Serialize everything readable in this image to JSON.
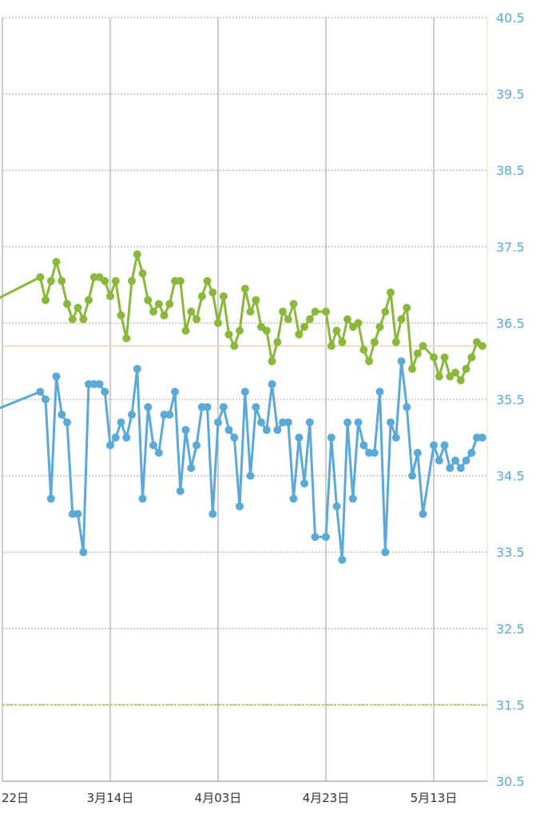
{
  "chart_data": {
    "type": "line",
    "title": "",
    "xlabel": "",
    "ylabel": "",
    "ylim": [
      30.5,
      40.5
    ],
    "y_ticks": [
      "40.5",
      "39.5",
      "38.5",
      "37.5",
      "36.5",
      "35.5",
      "34.5",
      "33.5",
      "32.5",
      "31.5",
      "30.5"
    ],
    "x_ticks": [
      {
        "label": "22日",
        "day": 0
      },
      {
        "label": "3月14日",
        "day": 20
      },
      {
        "label": "4月03日",
        "day": 40
      },
      {
        "label": "4月23日",
        "day": 60
      },
      {
        "label": "5月13日",
        "day": 80
      }
    ],
    "grid": true,
    "reference_lines": [
      {
        "value": 36.2,
        "color": "#f0dcc0"
      },
      {
        "value": 31.5,
        "color": "#a8c85a"
      }
    ],
    "series": [
      {
        "color": "#8ab83a",
        "points": [
          [
            -7,
            36.6
          ],
          [
            7,
            37.1
          ],
          [
            8,
            36.8
          ],
          [
            9,
            37.05
          ],
          [
            10,
            37.3
          ],
          [
            11,
            37.05
          ],
          [
            12,
            36.75
          ],
          [
            13,
            36.55
          ],
          [
            14,
            36.7
          ],
          [
            15,
            36.55
          ],
          [
            16,
            36.8
          ],
          [
            17,
            37.1
          ],
          [
            18,
            37.1
          ],
          [
            19,
            37.05
          ],
          [
            20,
            36.85
          ],
          [
            21,
            37.05
          ],
          [
            22,
            36.6
          ],
          [
            23,
            36.3
          ],
          [
            24,
            37.05
          ],
          [
            25,
            37.4
          ],
          [
            26,
            37.15
          ],
          [
            27,
            36.8
          ],
          [
            28,
            36.65
          ],
          [
            29,
            36.75
          ],
          [
            30,
            36.6
          ],
          [
            31,
            36.75
          ],
          [
            32,
            37.05
          ],
          [
            33,
            37.05
          ],
          [
            34,
            36.4
          ],
          [
            35,
            36.65
          ],
          [
            36,
            36.55
          ],
          [
            37,
            36.85
          ],
          [
            38,
            37.05
          ],
          [
            39,
            36.9
          ],
          [
            40,
            36.5
          ],
          [
            41,
            36.85
          ],
          [
            42,
            36.35
          ],
          [
            43,
            36.2
          ],
          [
            44,
            36.4
          ],
          [
            45,
            36.95
          ],
          [
            46,
            36.65
          ],
          [
            47,
            36.8
          ],
          [
            48,
            36.45
          ],
          [
            49,
            36.4
          ],
          [
            50,
            36.0
          ],
          [
            51,
            36.25
          ],
          [
            52,
            36.65
          ],
          [
            53,
            36.55
          ],
          [
            54,
            36.75
          ],
          [
            55,
            36.35
          ],
          [
            56,
            36.45
          ],
          [
            57,
            36.55
          ],
          [
            58,
            36.65
          ],
          [
            60,
            36.65
          ],
          [
            61,
            36.2
          ],
          [
            62,
            36.4
          ],
          [
            63,
            36.25
          ],
          [
            64,
            36.55
          ],
          [
            65,
            36.45
          ],
          [
            66,
            36.5
          ],
          [
            67,
            36.15
          ],
          [
            68,
            36.0
          ],
          [
            69,
            36.25
          ],
          [
            70,
            36.45
          ],
          [
            71,
            36.65
          ],
          [
            72,
            36.9
          ],
          [
            73,
            36.25
          ],
          [
            74,
            36.55
          ],
          [
            75,
            36.7
          ],
          [
            76,
            35.9
          ],
          [
            77,
            36.1
          ],
          [
            78,
            36.2
          ],
          [
            80,
            36.05
          ],
          [
            81,
            35.8
          ],
          [
            82,
            36.05
          ],
          [
            83,
            35.8
          ],
          [
            84,
            35.85
          ],
          [
            85,
            35.75
          ],
          [
            86,
            35.9
          ],
          [
            87,
            36.05
          ],
          [
            88,
            36.25
          ],
          [
            89,
            36.2
          ]
        ]
      },
      {
        "color": "#5aa9d6",
        "points": [
          [
            -7,
            35.2
          ],
          [
            7,
            35.6
          ],
          [
            8,
            35.5
          ],
          [
            9,
            34.2
          ],
          [
            10,
            35.8
          ],
          [
            11,
            35.3
          ],
          [
            12,
            35.2
          ],
          [
            13,
            34.0
          ],
          [
            14,
            34.0
          ],
          [
            15,
            33.5
          ],
          [
            16,
            35.7
          ],
          [
            17,
            35.7
          ],
          [
            18,
            35.7
          ],
          [
            19,
            35.6
          ],
          [
            20,
            34.9
          ],
          [
            21,
            35.0
          ],
          [
            22,
            35.2
          ],
          [
            23,
            35.0
          ],
          [
            24,
            35.3
          ],
          [
            25,
            35.9
          ],
          [
            26,
            34.2
          ],
          [
            27,
            35.4
          ],
          [
            28,
            34.9
          ],
          [
            29,
            34.8
          ],
          [
            30,
            35.3
          ],
          [
            31,
            35.3
          ],
          [
            32,
            35.6
          ],
          [
            33,
            34.3
          ],
          [
            34,
            35.1
          ],
          [
            35,
            34.6
          ],
          [
            36,
            34.9
          ],
          [
            37,
            35.4
          ],
          [
            38,
            35.4
          ],
          [
            39,
            34.0
          ],
          [
            40,
            35.2
          ],
          [
            41,
            35.4
          ],
          [
            42,
            35.1
          ],
          [
            43,
            35.0
          ],
          [
            44,
            34.1
          ],
          [
            45,
            35.6
          ],
          [
            46,
            34.5
          ],
          [
            47,
            35.4
          ],
          [
            48,
            35.2
          ],
          [
            49,
            35.1
          ],
          [
            50,
            35.7
          ],
          [
            51,
            35.1
          ],
          [
            52,
            35.2
          ],
          [
            53,
            35.2
          ],
          [
            54,
            34.2
          ],
          [
            55,
            35.0
          ],
          [
            56,
            34.4
          ],
          [
            57,
            35.2
          ],
          [
            58,
            33.7
          ],
          [
            60,
            33.7
          ],
          [
            61,
            35.0
          ],
          [
            62,
            34.1
          ],
          [
            63,
            33.4
          ],
          [
            64,
            35.2
          ],
          [
            65,
            34.2
          ],
          [
            66,
            35.2
          ],
          [
            67,
            34.9
          ],
          [
            68,
            34.8
          ],
          [
            69,
            34.8
          ],
          [
            70,
            35.6
          ],
          [
            71,
            33.5
          ],
          [
            72,
            35.2
          ],
          [
            73,
            35.0
          ],
          [
            74,
            36.0
          ],
          [
            75,
            35.4
          ],
          [
            76,
            34.5
          ],
          [
            77,
            34.8
          ],
          [
            78,
            34.0
          ],
          [
            80,
            34.9
          ],
          [
            81,
            34.7
          ],
          [
            82,
            34.9
          ],
          [
            83,
            34.6
          ],
          [
            84,
            34.7
          ],
          [
            85,
            34.6
          ],
          [
            86,
            34.7
          ],
          [
            87,
            34.8
          ],
          [
            88,
            35.0
          ],
          [
            89,
            35.0
          ]
        ]
      }
    ]
  }
}
